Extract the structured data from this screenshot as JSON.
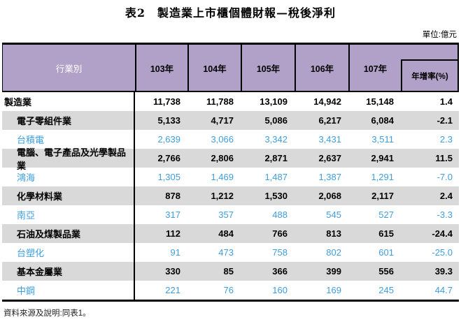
{
  "title": "表2　製造業上市櫃個體財報—稅後淨利",
  "unit_label": "單位:億元",
  "source_note": "資料來源及說明:同表1。",
  "colors": {
    "header_bg": "#b1a0c7",
    "industry_row_bg": "#d9d9d9",
    "company_text": "#3e9edb",
    "border": "#000000"
  },
  "table": {
    "category_header": "行業別",
    "year_headers": [
      "103年",
      "104年",
      "105年",
      "106年",
      "107年"
    ],
    "growth_header": "年增率(%)",
    "rows": [
      {
        "name": "製造業",
        "indent": false,
        "style": "total",
        "values": [
          "11,738",
          "11,788",
          "13,109",
          "14,942",
          "15,148",
          "1.4"
        ]
      },
      {
        "name": "電子零組件業",
        "indent": true,
        "style": "industry",
        "values": [
          "5,133",
          "4,717",
          "5,086",
          "6,217",
          "6,084",
          "-2.1"
        ]
      },
      {
        "name": "台積電",
        "indent": true,
        "style": "company",
        "values": [
          "2,639",
          "3,066",
          "3,342",
          "3,431",
          "3,511",
          "2.3"
        ]
      },
      {
        "name": "電腦、電子產品及光學製品業",
        "indent": true,
        "style": "industry",
        "values": [
          "2,766",
          "2,806",
          "2,871",
          "2,637",
          "2,941",
          "11.5"
        ]
      },
      {
        "name": "鴻海",
        "indent": true,
        "style": "company",
        "values": [
          "1,305",
          "1,469",
          "1,487",
          "1,387",
          "1,291",
          "-7.0"
        ]
      },
      {
        "name": "化學材料業",
        "indent": true,
        "style": "industry",
        "values": [
          "878",
          "1,212",
          "1,530",
          "2,068",
          "2,117",
          "2.4"
        ]
      },
      {
        "name": "南亞",
        "indent": true,
        "style": "company",
        "values": [
          "317",
          "357",
          "488",
          "545",
          "527",
          "-3.3"
        ]
      },
      {
        "name": "石油及煤製品業",
        "indent": true,
        "style": "industry",
        "values": [
          "112",
          "484",
          "766",
          "813",
          "615",
          "-24.4"
        ]
      },
      {
        "name": "台塑化",
        "indent": true,
        "style": "company",
        "values": [
          "91",
          "473",
          "758",
          "802",
          "601",
          "-25.0"
        ]
      },
      {
        "name": "基本金屬業",
        "indent": true,
        "style": "industry",
        "values": [
          "330",
          "85",
          "366",
          "399",
          "556",
          "39.3"
        ]
      },
      {
        "name": "中鋼",
        "indent": true,
        "style": "company",
        "values": [
          "221",
          "76",
          "160",
          "169",
          "245",
          "44.7"
        ]
      }
    ]
  }
}
